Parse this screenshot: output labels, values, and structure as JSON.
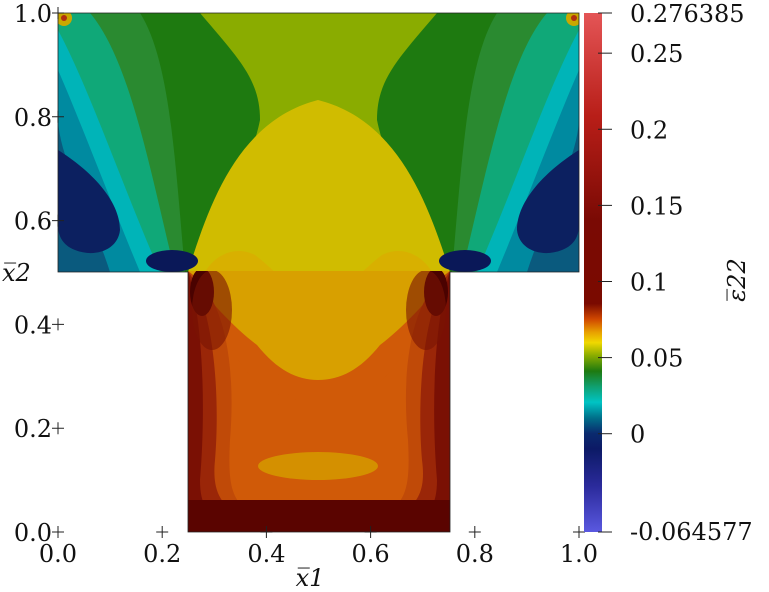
{
  "chart_data": {
    "type": "heatmap",
    "title": "",
    "xlabel": "x̅1",
    "ylabel": "x̅2",
    "xlim": [
      0.0,
      1.0
    ],
    "ylim": [
      0.0,
      1.0
    ],
    "x_ticks": [
      "0.0",
      "0.2",
      "0.4",
      "0.6",
      "0.8",
      "1.0"
    ],
    "y_ticks": [
      "0.0",
      "0.2",
      "0.4",
      "0.6",
      "0.8",
      "1.0"
    ],
    "domain_shape": "T-shape: top flange y 0.5–1.0 over x 0–1, web x 0.25–0.75 over y 0–0.5",
    "colorbar": {
      "label": "ε̅22",
      "min": -0.064577,
      "max": 0.276385,
      "min_label": "-0.064577",
      "max_label": "0.276385",
      "ticks": [
        {
          "value": 0,
          "label": "0"
        },
        {
          "value": 0.05,
          "label": "0.05"
        },
        {
          "value": 0.1,
          "label": "0.1"
        },
        {
          "value": 0.15,
          "label": "0.15"
        },
        {
          "value": 0.2,
          "label": "0.2"
        },
        {
          "value": 0.25,
          "label": "0.25"
        }
      ],
      "colors": {
        "low": "#5a58e0",
        "navy": "#0e1f66",
        "teal": "#00aab8",
        "green": "#1e7a10",
        "yellow": "#d0bc00",
        "orange": "#d05a08",
        "darkred": "#6a0600",
        "high": "#e45556"
      }
    }
  }
}
